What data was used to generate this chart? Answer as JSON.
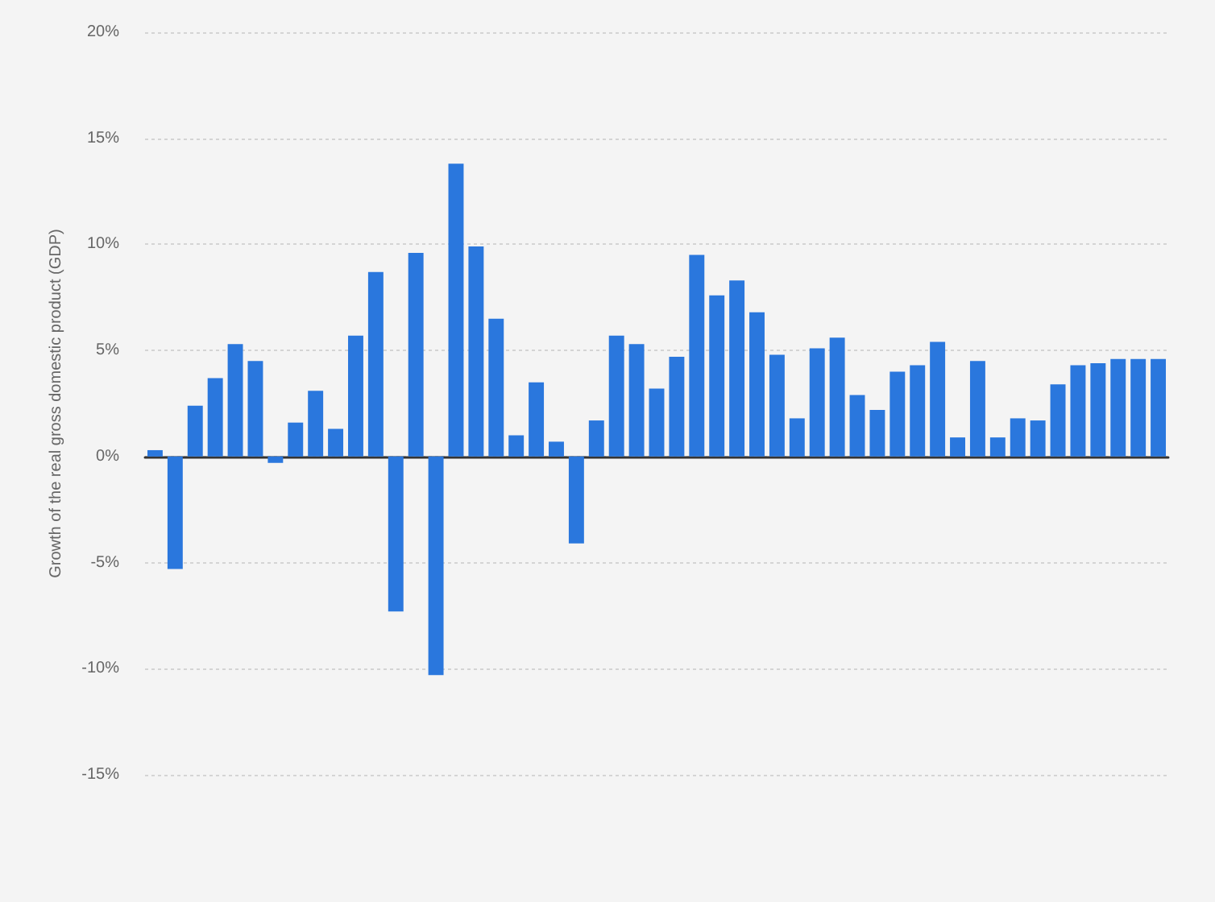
{
  "chart_data": {
    "type": "bar",
    "ylabel": "Growth of the real gross domestic product (GDP)",
    "categories": [
      null,
      null,
      null,
      null,
      null,
      null,
      null,
      null,
      null,
      null,
      null,
      null,
      null,
      null,
      null,
      null,
      null,
      null,
      null,
      null,
      null,
      null,
      null,
      null,
      null,
      null,
      null,
      null,
      null,
      null,
      null,
      null,
      null,
      null,
      null,
      null,
      null,
      null,
      null,
      null,
      null,
      null,
      null,
      null,
      null,
      null,
      null,
      null,
      null,
      null,
      null
    ],
    "values": [
      0.3,
      -5.3,
      2.4,
      3.7,
      5.3,
      4.5,
      -0.3,
      1.6,
      3.1,
      1.3,
      5.7,
      8.7,
      -7.3,
      9.6,
      -10.3,
      13.8,
      9.9,
      6.5,
      1.0,
      3.5,
      0.7,
      -4.1,
      1.7,
      5.7,
      5.3,
      3.2,
      4.7,
      9.5,
      7.6,
      8.3,
      6.8,
      4.8,
      1.8,
      5.1,
      5.6,
      2.9,
      2.2,
      4.0,
      4.3,
      5.4,
      0.9,
      4.5,
      0.9,
      1.8,
      1.7,
      3.4,
      4.3,
      4.4,
      4.6,
      4.6,
      4.6
    ],
    "color": "#2a77dd",
    "ylim": [
      -15,
      20
    ],
    "yticks": [
      {
        "value": -15,
        "label": "-15%"
      },
      {
        "value": -10,
        "label": "-10%"
      },
      {
        "value": -5,
        "label": "-5%"
      },
      {
        "value": 0,
        "label": "0%"
      },
      {
        "value": 5,
        "label": "5%"
      },
      {
        "value": 10,
        "label": "10%"
      },
      {
        "value": 15,
        "label": "15%"
      },
      {
        "value": 20,
        "label": "20%"
      }
    ],
    "grid": "y",
    "tick_labels": "y"
  }
}
